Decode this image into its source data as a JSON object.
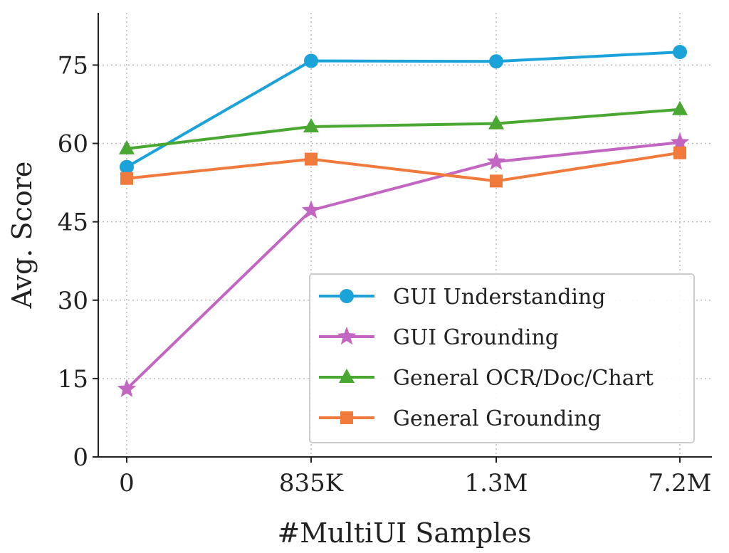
{
  "chart_data": {
    "type": "line",
    "title": "",
    "xlabel": "#MultiUI Samples",
    "ylabel": "Avg. Score",
    "categories": [
      "0",
      "835K",
      "1.3M",
      "7.2M"
    ],
    "yticks": [
      0,
      15,
      30,
      45,
      60,
      75
    ],
    "ylim": [
      0,
      85
    ],
    "grid": true,
    "legend_position": "lower-right",
    "series": [
      {
        "name": "GUI Understanding",
        "color": "#1ba3d9",
        "marker": "circle",
        "values": [
          55.5,
          75.8,
          75.7,
          77.5
        ]
      },
      {
        "name": "GUI Grounding",
        "color": "#c266c2",
        "marker": "star",
        "values": [
          13.0,
          47.2,
          56.5,
          60.2
        ]
      },
      {
        "name": "General OCR/Doc/Chart",
        "color": "#4aa832",
        "marker": "triangle",
        "values": [
          59.0,
          63.2,
          63.8,
          66.5
        ]
      },
      {
        "name": "General Grounding",
        "color": "#ef7a3c",
        "marker": "square",
        "values": [
          53.3,
          57.0,
          52.8,
          58.2
        ]
      }
    ]
  }
}
